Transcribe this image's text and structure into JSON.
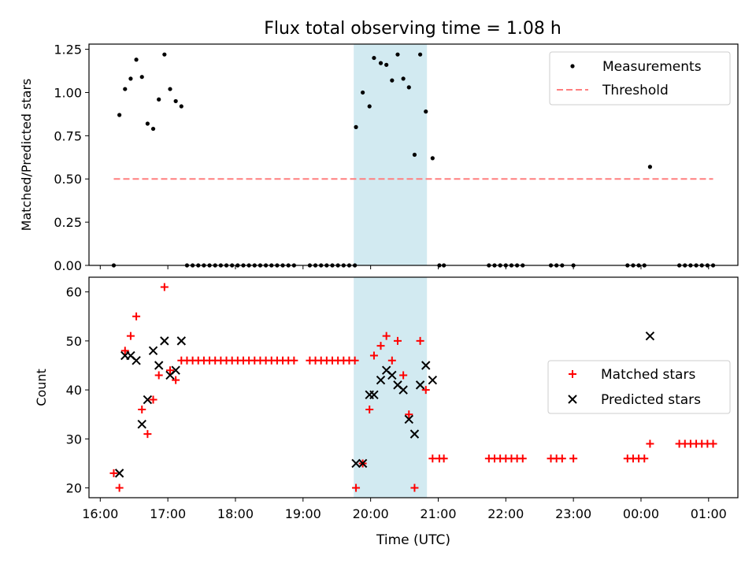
{
  "figure_title": "Flux total observing time = 1.08 h",
  "colors": {
    "shade": "#add8e6",
    "measurements": "#000000",
    "threshold": "#ff7f7f",
    "matched": "#ff0000",
    "predicted": "#000000"
  },
  "chart_data": [
    {
      "type": "scatter",
      "title": "Flux total observing time = 1.08 h",
      "xlabel": "",
      "ylabel": "Matched/Predicted stars",
      "xlim": [
        "15:50",
        "01:26"
      ],
      "ylim": [
        0,
        1.28
      ],
      "yticks": [
        0.0,
        0.25,
        0.5,
        0.75,
        1.0,
        1.25
      ],
      "ytick_labels": [
        "0.00",
        "0.25",
        "0.50",
        "0.75",
        "1.00",
        "1.25"
      ],
      "legend": {
        "location": "upper right",
        "entries": [
          "Measurements",
          "Threshold"
        ]
      },
      "shaded_interval": [
        "19:45",
        "20:50"
      ],
      "series": [
        {
          "name": "Measurements",
          "marker": "dot",
          "points": [
            [
              "16:12",
              0.0
            ],
            [
              "16:17",
              0.87
            ],
            [
              "16:22",
              1.02
            ],
            [
              "16:27",
              1.08
            ],
            [
              "16:32",
              1.19
            ],
            [
              "16:37",
              1.09
            ],
            [
              "16:42",
              0.82
            ],
            [
              "16:47",
              0.79
            ],
            [
              "16:52",
              0.96
            ],
            [
              "16:57",
              1.22
            ],
            [
              "17:02",
              1.02
            ],
            [
              "17:07",
              0.95
            ],
            [
              "17:12",
              0.92
            ],
            [
              "17:17",
              0.0
            ],
            [
              "17:22",
              0.0
            ],
            [
              "17:27",
              0.0
            ],
            [
              "17:32",
              0.0
            ],
            [
              "17:37",
              0.0
            ],
            [
              "17:42",
              0.0
            ],
            [
              "17:47",
              0.0
            ],
            [
              "17:52",
              0.0
            ],
            [
              "17:57",
              0.0
            ],
            [
              "18:02",
              0.0
            ],
            [
              "18:07",
              0.0
            ],
            [
              "18:12",
              0.0
            ],
            [
              "18:17",
              0.0
            ],
            [
              "18:22",
              0.0
            ],
            [
              "18:27",
              0.0
            ],
            [
              "18:32",
              0.0
            ],
            [
              "18:37",
              0.0
            ],
            [
              "18:42",
              0.0
            ],
            [
              "18:47",
              0.0
            ],
            [
              "18:52",
              0.0
            ],
            [
              "19:06",
              0.0
            ],
            [
              "19:11",
              0.0
            ],
            [
              "19:16",
              0.0
            ],
            [
              "19:21",
              0.0
            ],
            [
              "19:26",
              0.0
            ],
            [
              "19:31",
              0.0
            ],
            [
              "19:36",
              0.0
            ],
            [
              "19:41",
              0.0
            ],
            [
              "19:46",
              0.0
            ],
            [
              "19:47",
              0.8
            ],
            [
              "19:53",
              1.0
            ],
            [
              "19:59",
              0.92
            ],
            [
              "20:03",
              1.2
            ],
            [
              "20:09",
              1.17
            ],
            [
              "20:14",
              1.16
            ],
            [
              "20:19",
              1.07
            ],
            [
              "20:24",
              1.22
            ],
            [
              "20:29",
              1.08
            ],
            [
              "20:34",
              1.03
            ],
            [
              "20:39",
              0.64
            ],
            [
              "20:44",
              1.22
            ],
            [
              "20:49",
              0.89
            ],
            [
              "20:55",
              0.62
            ],
            [
              "21:01",
              0.0
            ],
            [
              "21:05",
              0.0
            ],
            [
              "21:45",
              0.0
            ],
            [
              "21:50",
              0.0
            ],
            [
              "21:55",
              0.0
            ],
            [
              "22:00",
              0.0
            ],
            [
              "22:05",
              0.0
            ],
            [
              "22:10",
              0.0
            ],
            [
              "22:15",
              0.0
            ],
            [
              "22:40",
              0.0
            ],
            [
              "22:45",
              0.0
            ],
            [
              "22:50",
              0.0
            ],
            [
              "23:00",
              0.0
            ],
            [
              "23:48",
              0.0
            ],
            [
              "23:53",
              0.0
            ],
            [
              "23:58",
              0.0
            ],
            [
              "00:03",
              0.0
            ],
            [
              "00:08",
              0.57
            ],
            [
              "00:34",
              0.0
            ],
            [
              "00:39",
              0.0
            ],
            [
              "00:44",
              0.0
            ],
            [
              "00:49",
              0.0
            ],
            [
              "00:54",
              0.0
            ],
            [
              "00:59",
              0.0
            ],
            [
              "01:04",
              0.0
            ]
          ]
        },
        {
          "name": "Threshold",
          "marker": "dashed-line",
          "points": [
            [
              "16:12",
              0.5
            ],
            [
              "01:04",
              0.5
            ]
          ]
        }
      ]
    },
    {
      "type": "scatter",
      "title": "",
      "xlabel": "Time (UTC)",
      "ylabel": "Count",
      "xlim": [
        "15:50",
        "01:26"
      ],
      "ylim": [
        18,
        63
      ],
      "yticks": [
        20,
        30,
        40,
        50,
        60
      ],
      "ytick_labels": [
        "20",
        "30",
        "40",
        "50",
        "60"
      ],
      "xticks": [
        "16:00",
        "17:00",
        "18:00",
        "19:00",
        "20:00",
        "21:00",
        "22:00",
        "23:00",
        "00:00",
        "01:00"
      ],
      "legend": {
        "location": "center right",
        "entries": [
          "Matched stars",
          "Predicted stars"
        ]
      },
      "shaded_interval": [
        "19:45",
        "20:50"
      ],
      "series": [
        {
          "name": "Matched stars",
          "marker": "plus",
          "points": [
            [
              "16:12",
              23
            ],
            [
              "16:17",
              20
            ],
            [
              "16:22",
              48
            ],
            [
              "16:27",
              51
            ],
            [
              "16:32",
              55
            ],
            [
              "16:37",
              36
            ],
            [
              "16:42",
              31
            ],
            [
              "16:47",
              38
            ],
            [
              "16:52",
              43
            ],
            [
              "16:57",
              61
            ],
            [
              "17:02",
              44
            ],
            [
              "17:07",
              42
            ],
            [
              "17:12",
              46
            ],
            [
              "17:17",
              46
            ],
            [
              "17:22",
              46
            ],
            [
              "17:27",
              46
            ],
            [
              "17:32",
              46
            ],
            [
              "17:37",
              46
            ],
            [
              "17:42",
              46
            ],
            [
              "17:47",
              46
            ],
            [
              "17:52",
              46
            ],
            [
              "17:57",
              46
            ],
            [
              "18:02",
              46
            ],
            [
              "18:07",
              46
            ],
            [
              "18:12",
              46
            ],
            [
              "18:17",
              46
            ],
            [
              "18:22",
              46
            ],
            [
              "18:27",
              46
            ],
            [
              "18:32",
              46
            ],
            [
              "18:37",
              46
            ],
            [
              "18:42",
              46
            ],
            [
              "18:47",
              46
            ],
            [
              "18:52",
              46
            ],
            [
              "19:06",
              46
            ],
            [
              "19:11",
              46
            ],
            [
              "19:16",
              46
            ],
            [
              "19:21",
              46
            ],
            [
              "19:26",
              46
            ],
            [
              "19:31",
              46
            ],
            [
              "19:36",
              46
            ],
            [
              "19:41",
              46
            ],
            [
              "19:46",
              46
            ],
            [
              "19:47",
              20
            ],
            [
              "19:53",
              25
            ],
            [
              "19:59",
              36
            ],
            [
              "20:03",
              47
            ],
            [
              "20:09",
              49
            ],
            [
              "20:14",
              51
            ],
            [
              "20:19",
              46
            ],
            [
              "20:24",
              50
            ],
            [
              "20:29",
              43
            ],
            [
              "20:34",
              35
            ],
            [
              "20:39",
              20
            ],
            [
              "20:44",
              50
            ],
            [
              "20:49",
              40
            ],
            [
              "20:55",
              26
            ],
            [
              "21:01",
              26
            ],
            [
              "21:05",
              26
            ],
            [
              "21:45",
              26
            ],
            [
              "21:50",
              26
            ],
            [
              "21:55",
              26
            ],
            [
              "22:00",
              26
            ],
            [
              "22:05",
              26
            ],
            [
              "22:10",
              26
            ],
            [
              "22:15",
              26
            ],
            [
              "22:40",
              26
            ],
            [
              "22:45",
              26
            ],
            [
              "22:50",
              26
            ],
            [
              "23:00",
              26
            ],
            [
              "23:48",
              26
            ],
            [
              "23:53",
              26
            ],
            [
              "23:58",
              26
            ],
            [
              "00:03",
              26
            ],
            [
              "00:08",
              29
            ],
            [
              "00:34",
              29
            ],
            [
              "00:39",
              29
            ],
            [
              "00:44",
              29
            ],
            [
              "00:49",
              29
            ],
            [
              "00:54",
              29
            ],
            [
              "00:59",
              29
            ],
            [
              "01:04",
              29
            ]
          ]
        },
        {
          "name": "Predicted stars",
          "marker": "x",
          "points": [
            [
              "16:17",
              23
            ],
            [
              "16:22",
              47
            ],
            [
              "16:27",
              47
            ],
            [
              "16:32",
              46
            ],
            [
              "16:37",
              33
            ],
            [
              "16:42",
              38
            ],
            [
              "16:47",
              48
            ],
            [
              "16:52",
              45
            ],
            [
              "16:57",
              50
            ],
            [
              "17:02",
              43
            ],
            [
              "17:07",
              44
            ],
            [
              "17:12",
              50
            ],
            [
              "19:47",
              25
            ],
            [
              "19:53",
              25
            ],
            [
              "19:59",
              39
            ],
            [
              "20:03",
              39
            ],
            [
              "20:09",
              42
            ],
            [
              "20:14",
              44
            ],
            [
              "20:19",
              43
            ],
            [
              "20:24",
              41
            ],
            [
              "20:29",
              40
            ],
            [
              "20:34",
              34
            ],
            [
              "20:39",
              31
            ],
            [
              "20:44",
              41
            ],
            [
              "20:49",
              45
            ],
            [
              "20:55",
              42
            ],
            [
              "00:08",
              51
            ]
          ]
        }
      ]
    }
  ]
}
